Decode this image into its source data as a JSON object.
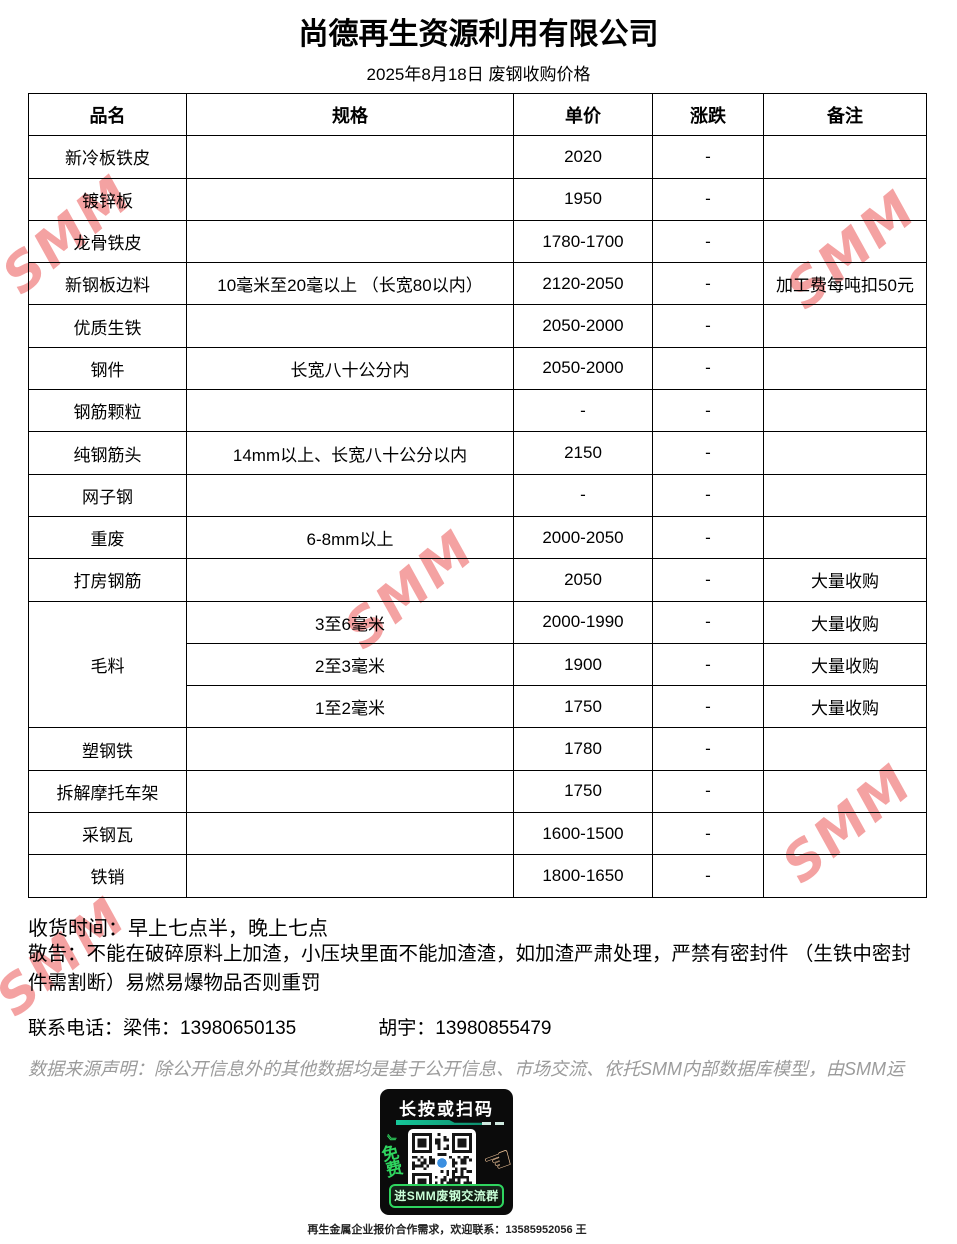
{
  "page": {
    "title": "尚德再生资源利用有限公司",
    "subtitle": "2025年8月18日 废钢收购价格"
  },
  "watermark": {
    "text": "SMM",
    "color": "#f4a2a2"
  },
  "table": {
    "columns": [
      "品名",
      "规格",
      "单价",
      "涨跌",
      "备注"
    ],
    "rows": [
      {
        "name": "新冷板铁皮",
        "spec": "",
        "price": "2020",
        "change": "-",
        "note": ""
      },
      {
        "name": "镀锌板",
        "spec": "",
        "price": "1950",
        "change": "-",
        "note": ""
      },
      {
        "name": "龙骨铁皮",
        "spec": "",
        "price": "1780-1700",
        "change": "-",
        "note": ""
      },
      {
        "name": "新钢板边料",
        "spec": "10毫米至20毫以上 （长宽80以内）",
        "price": "2120-2050",
        "change": "-",
        "note": "加工费每吨扣50元"
      },
      {
        "name": "优质生铁",
        "spec": "",
        "price": "2050-2000",
        "change": "-",
        "note": ""
      },
      {
        "name": "钢件",
        "spec": "长宽八十公分内",
        "price": "2050-2000",
        "change": "-",
        "note": ""
      },
      {
        "name": "钢筋颗粒",
        "spec": "",
        "price": "-",
        "change": "-",
        "note": ""
      },
      {
        "name": "纯钢筋头",
        "spec": "14mm以上、长宽八十公分以内",
        "price": "2150",
        "change": "-",
        "note": ""
      },
      {
        "name": "网子钢",
        "spec": "",
        "price": "-",
        "change": "-",
        "note": ""
      },
      {
        "name": "重废",
        "spec": "6-8mm以上",
        "price": "2000-2050",
        "change": "-",
        "note": ""
      },
      {
        "name": "打房钢筋",
        "spec": "",
        "price": "2050",
        "change": "-",
        "note": "大量收购"
      },
      {
        "name": "毛料",
        "name_rowspan": 3,
        "spec": "3至6毫米",
        "price": "2000-1990",
        "change": "-",
        "note": "大量收购"
      },
      {
        "name": null,
        "spec": "2至3毫米",
        "price": "1900",
        "change": "-",
        "note": "大量收购"
      },
      {
        "name": null,
        "spec": "1至2毫米",
        "price": "1750",
        "change": "-",
        "note": "大量收购"
      },
      {
        "name": "塑钢铁",
        "spec": "",
        "price": "1780",
        "change": "-",
        "note": ""
      },
      {
        "name": "拆解摩托车架",
        "spec": "",
        "price": "1750",
        "change": "-",
        "note": ""
      },
      {
        "name": "采钢瓦",
        "spec": "",
        "price": "1600-1500",
        "change": "-",
        "note": ""
      },
      {
        "name": "铁销",
        "spec": "",
        "price": "1800-1650",
        "change": "-",
        "note": ""
      }
    ]
  },
  "footer": {
    "pickup_time": "收货时间：早上七点半，晚上七点",
    "notice": "敬告：不能在破碎原料上加渣，小压块里面不能加渣渣，如加渣严肃处理，严禁有密封件 （生铁中密封件需割断）易燃易爆物品否则重罚",
    "contact_line1": "联系电话：梁伟：13980650135",
    "contact_line2": "胡宇：13980855479",
    "disclaimer": "数据来源声明：除公开信息外的其他数据均是基于公开信息、市场交流、依托SMM内部数据库模型，由SMM运"
  },
  "qr_panel": {
    "header": "长按或扫码",
    "free_label": "免费",
    "button_label": "进SMM废钢交流群",
    "caption": "再生金属企业报价合作需求，欢迎联系：13585952056 王",
    "accent_green": "#2fd55f",
    "icons": {
      "pointing_hand": "☜",
      "chevron": "》",
      "arrow": "↘"
    }
  }
}
